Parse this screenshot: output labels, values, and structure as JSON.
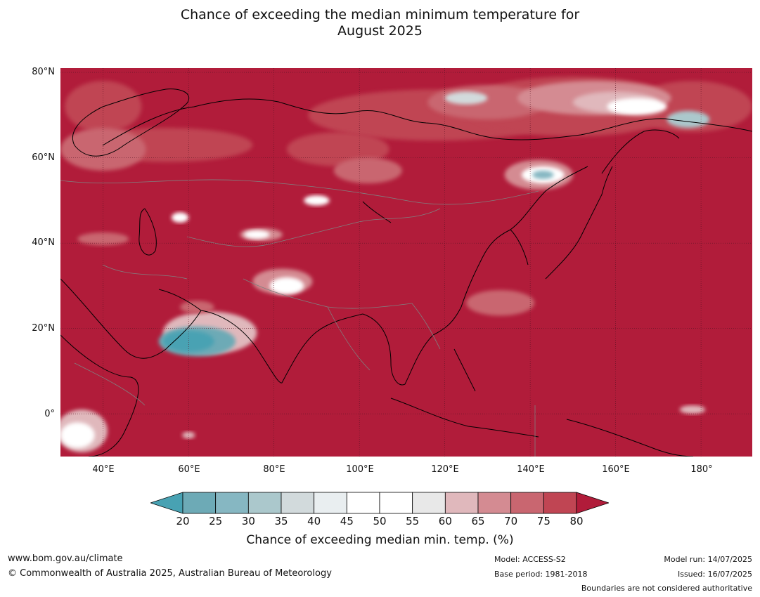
{
  "title": {
    "line1": "Chance of exceeding the median minimum temperature for",
    "line2": "August 2025"
  },
  "map": {
    "lat_labels": [
      "80°N",
      "60°N",
      "40°N",
      "20°N",
      "0°"
    ],
    "lon_labels": [
      "40°E",
      "60°E",
      "80°E",
      "100°E",
      "120°E",
      "140°E",
      "160°E",
      "180°"
    ],
    "lon_range": [
      30,
      192
    ],
    "lat_range": [
      -10,
      81
    ],
    "colors": {
      "ocean_land_high": "#b11c3a",
      "band_75_80": "#c04553",
      "band_70_75": "#c96670",
      "band_65_70": "#d48b92",
      "band_60_65": "#e0b8bc",
      "band_55_60": "#e8e8e8",
      "band_45_55": "#ffffff",
      "band_40_45": "#e9eef0",
      "band_35_40": "#d2dadc",
      "band_30_35": "#abc8cc",
      "band_25_30": "#86b7c2",
      "band_20_25": "#6daab6",
      "band_below_20": "#48a2b3",
      "coastline": "#000000",
      "borders": "#808080"
    }
  },
  "colorbar": {
    "ticks": [
      "20",
      "25",
      "30",
      "35",
      "40",
      "45",
      "50",
      "55",
      "60",
      "65",
      "70",
      "75",
      "80"
    ],
    "colors": [
      "#48a2b3",
      "#6daab6",
      "#86b7c2",
      "#abc8cc",
      "#d2dadc",
      "#e9eef0",
      "#ffffff",
      "#ffffff",
      "#e8e8e8",
      "#e0b8bc",
      "#d48b92",
      "#c96670",
      "#c04553",
      "#b11c3a"
    ],
    "label": "Chance of exceeding median min. temp. (%)"
  },
  "footer": {
    "url": "www.bom.gov.au/climate",
    "copyright": "© Commonwealth of Australia 2025, Australian Bureau of Meteorology",
    "model": "Model: ACCESS-S2",
    "base_period": "Base period: 1981-2018",
    "model_run": "Model run: 14/07/2025",
    "issued": "Issued: 16/07/2025",
    "disclaimer": "Boundaries are not considered authoritative"
  }
}
